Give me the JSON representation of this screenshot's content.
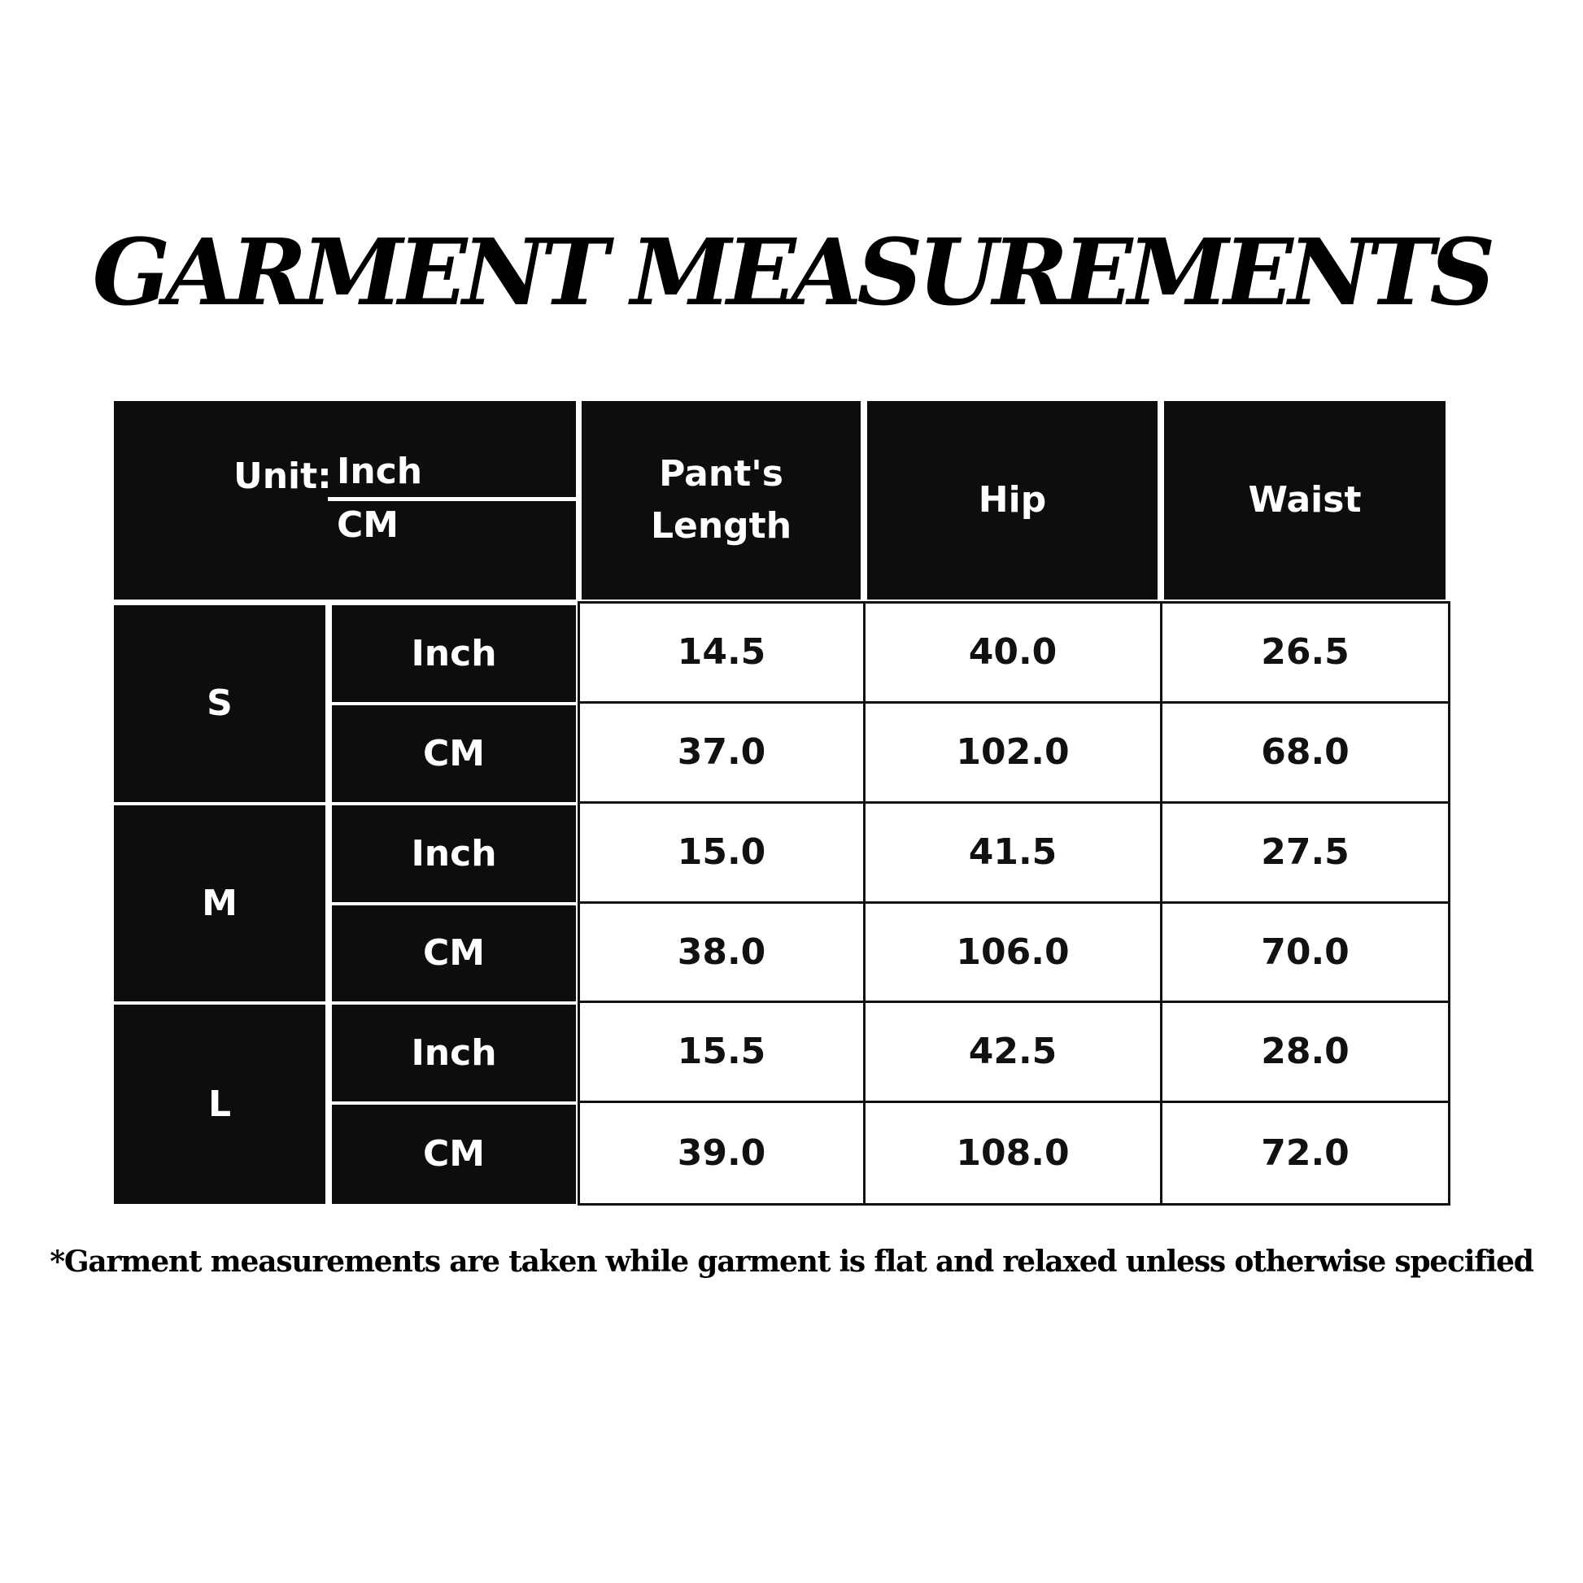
{
  "title": "GARMENT MEASUREMENTS",
  "table": {
    "unit_label": "Unit:",
    "unit_top": "Inch",
    "unit_bottom": "CM",
    "columns": [
      "Pant's Length",
      "Hip",
      "Waist"
    ],
    "sizes": [
      {
        "size": "S",
        "rows": [
          {
            "unit": "Inch",
            "values": [
              "14.5",
              "40.0",
              "26.5"
            ]
          },
          {
            "unit": "CM",
            "values": [
              "37.0",
              "102.0",
              "68.0"
            ]
          }
        ]
      },
      {
        "size": "M",
        "rows": [
          {
            "unit": "Inch",
            "values": [
              "15.0",
              "41.5",
              "27.5"
            ]
          },
          {
            "unit": "CM",
            "values": [
              "38.0",
              "106.0",
              "70.0"
            ]
          }
        ]
      },
      {
        "size": "L",
        "rows": [
          {
            "unit": "Inch",
            "values": [
              "15.5",
              "42.5",
              "28.0"
            ]
          },
          {
            "unit": "CM",
            "values": [
              "39.0",
              "108.0",
              "72.0"
            ]
          }
        ]
      }
    ]
  },
  "footnote": "*Garment measurements are taken while garment is flat and relaxed unless otherwise specified"
}
